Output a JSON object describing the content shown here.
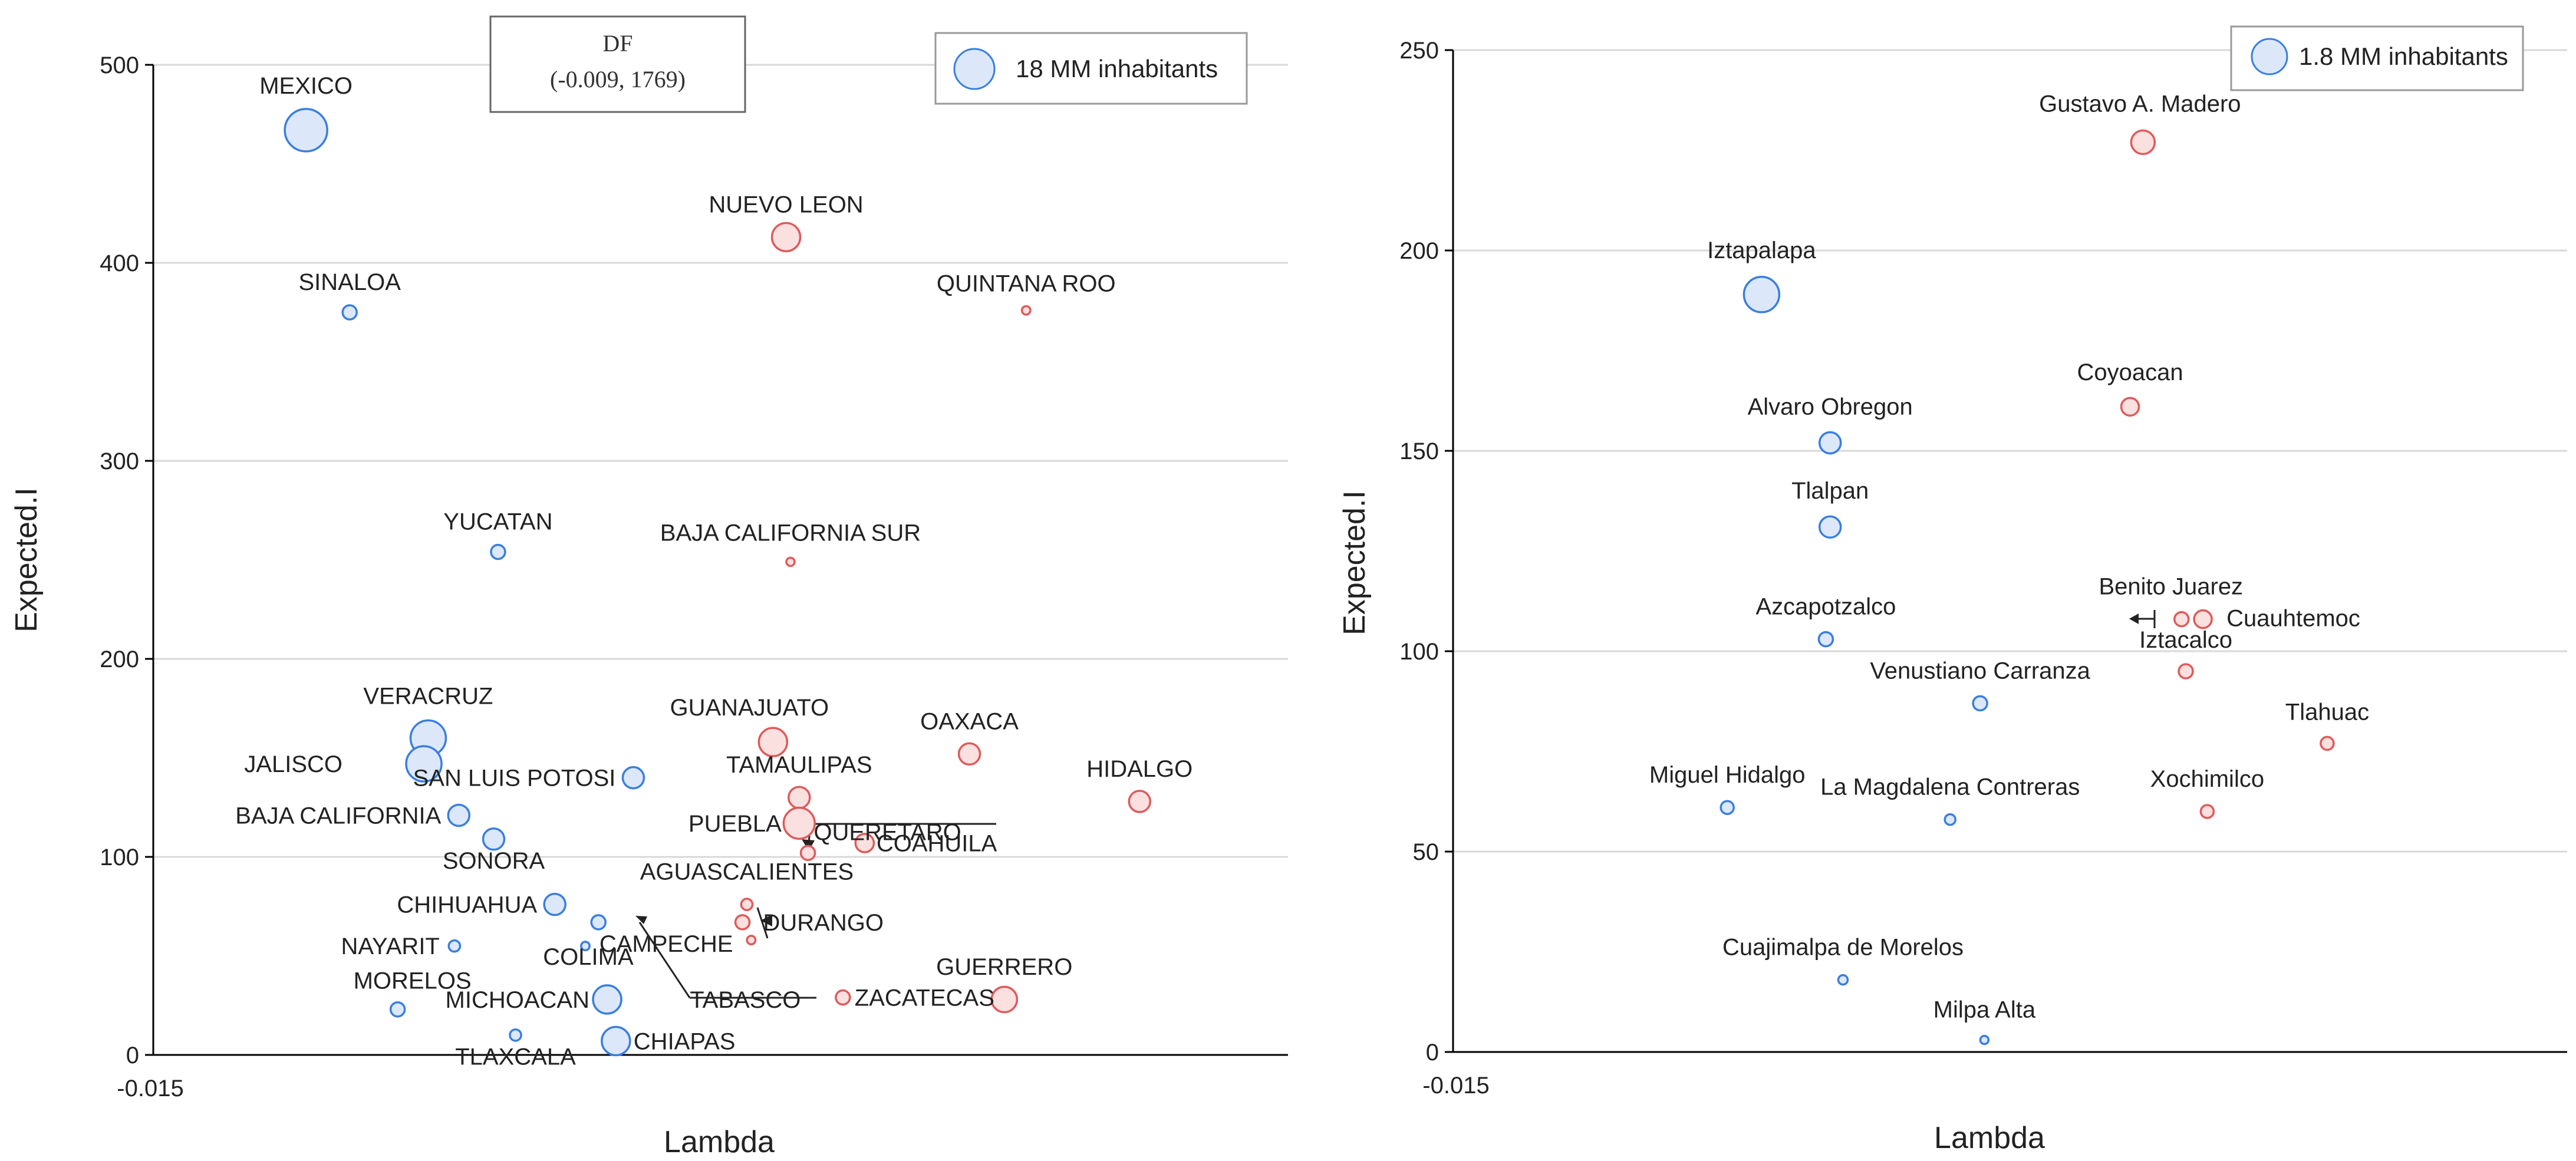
{
  "colors": {
    "blue_stroke": "#3a7ee0",
    "blue_fill": "#dce8fa",
    "red_stroke": "#e05a5a",
    "red_fill": "#fbe0e0",
    "grid": "#d8d8d8",
    "axis": "#000000"
  },
  "chart_data": [
    {
      "type": "scatter",
      "name": "states",
      "xlabel": "Lambda",
      "ylabel": "Expected.I",
      "x_tick_label": "-0.015",
      "xlim": [
        -0.015,
        0.011
      ],
      "ylim": [
        0,
        500
      ],
      "y_ticks": [
        0,
        100,
        200,
        300,
        400,
        500
      ],
      "grid": true,
      "legend": {
        "label": "18 MM inhabitants",
        "placement": "top-right"
      },
      "annotation": {
        "title": "DF",
        "value": "(-0.009, 1769)"
      },
      "points": [
        {
          "label": "MEXICO",
          "x": -0.0115,
          "y": 467,
          "size": 3,
          "group": "blue"
        },
        {
          "label": "SINALOA",
          "x": -0.0105,
          "y": 375,
          "size": 1,
          "group": "blue"
        },
        {
          "label": "YUCATAN",
          "x": -0.0071,
          "y": 254,
          "size": 1,
          "group": "blue"
        },
        {
          "label": "NUEVO LEON",
          "x": -0.0005,
          "y": 413,
          "size": 2,
          "group": "red"
        },
        {
          "label": "QUINTANA ROO",
          "x": 0.005,
          "y": 376,
          "size": 0.6,
          "group": "red"
        },
        {
          "label": "BAJA CALIFORNIA SUR",
          "x": -0.0004,
          "y": 249,
          "size": 0.4,
          "group": "red"
        },
        {
          "label": "VERACRUZ",
          "x": -0.0087,
          "y": 160,
          "size": 2.5,
          "group": "blue"
        },
        {
          "label": "JALISCO",
          "x": -0.0088,
          "y": 147,
          "size": 2.5,
          "group": "blue"
        },
        {
          "label": "BAJA CALIFORNIA",
          "x": -0.008,
          "y": 121,
          "size": 1.5,
          "group": "blue"
        },
        {
          "label": "SONORA",
          "x": -0.0072,
          "y": 109,
          "size": 1.5,
          "group": "blue"
        },
        {
          "label": "SAN LUIS POTOSI",
          "x": -0.004,
          "y": 140,
          "size": 1.5,
          "group": "blue"
        },
        {
          "label": "CHIHUAHUA",
          "x": -0.0058,
          "y": 76,
          "size": 1.5,
          "group": "blue"
        },
        {
          "label": "NAYARIT",
          "x": -0.0081,
          "y": 55,
          "size": 0.8,
          "group": "blue"
        },
        {
          "label": "MORELOS",
          "x": -0.0094,
          "y": 23,
          "size": 1,
          "group": "blue"
        },
        {
          "label": "TLAXCALA",
          "x": -0.0067,
          "y": 10,
          "size": 0.8,
          "group": "blue"
        },
        {
          "label": "MICHOACAN",
          "x": -0.0046,
          "y": 28,
          "size": 2,
          "group": "blue"
        },
        {
          "label": "CHIAPAS",
          "x": -0.0044,
          "y": 7,
          "size": 2,
          "group": "blue"
        },
        {
          "label": "COLIMA",
          "x": -0.0051,
          "y": 55,
          "size": 0.6,
          "group": "blue"
        },
        {
          "label": "CAMPECHE",
          "x": -0.0048,
          "y": 67,
          "size": 1,
          "group": "blue"
        },
        {
          "label": "GUANAJUATO",
          "x": -0.0008,
          "y": 158,
          "size": 2,
          "group": "red"
        },
        {
          "label": "TAMAULIPAS",
          "x": -0.0002,
          "y": 130,
          "size": 1.5,
          "group": "red"
        },
        {
          "label": "PUEBLA",
          "x": -0.0002,
          "y": 117,
          "size": 2.2,
          "group": "red"
        },
        {
          "label": "QUERETARO",
          "x": 0.0,
          "y": 102,
          "size": 1,
          "group": "red"
        },
        {
          "label": "COAHUILA",
          "x": 0.0013,
          "y": 107,
          "size": 1.3,
          "group": "red"
        },
        {
          "label": "AGUASCALIENTES",
          "x": -0.0014,
          "y": 76,
          "size": 0.8,
          "group": "red"
        },
        {
          "label": "DURANGO",
          "x": -0.0015,
          "y": 67,
          "size": 1,
          "group": "red"
        },
        {
          "label": "TABASCO",
          "x": -0.0013,
          "y": 58,
          "size": 0.6,
          "group": "red"
        },
        {
          "label": "OAXACA",
          "x": 0.0037,
          "y": 152,
          "size": 1.5,
          "group": "red"
        },
        {
          "label": "HIDALGO",
          "x": 0.0076,
          "y": 128,
          "size": 1.5,
          "group": "red"
        },
        {
          "label": "ZACATECAS",
          "x": 0.0008,
          "y": 29,
          "size": 1,
          "group": "red"
        },
        {
          "label": "GUERRERO",
          "x": 0.0045,
          "y": 28,
          "size": 1.8,
          "group": "red"
        }
      ]
    },
    {
      "type": "scatter",
      "name": "df_boroughs",
      "xlabel": "Lambda",
      "ylabel": "Expected.I",
      "x_tick_label": "-0.015",
      "xlim": [
        -0.015,
        0.011
      ],
      "ylim": [
        0,
        250
      ],
      "y_ticks": [
        0,
        50,
        100,
        150,
        200,
        250
      ],
      "grid": true,
      "legend": {
        "label": "1.8 MM inhabitants",
        "placement": "top-right"
      },
      "points": [
        {
          "label": "Gustavo A. Madero",
          "x": 0.0011,
          "y": 227,
          "size": 2,
          "group": "red"
        },
        {
          "label": "Iztapalapa",
          "x": -0.0078,
          "y": 189,
          "size": 3,
          "group": "blue"
        },
        {
          "label": "Coyoacan",
          "x": 0.0008,
          "y": 161,
          "size": 1.5,
          "group": "red"
        },
        {
          "label": "Alvaro Obregon",
          "x": -0.0062,
          "y": 152,
          "size": 1.8,
          "group": "blue"
        },
        {
          "label": "Tlalpan",
          "x": -0.0062,
          "y": 131,
          "size": 1.8,
          "group": "blue"
        },
        {
          "label": "Azcapotzalco",
          "x": -0.0063,
          "y": 103,
          "size": 1.2,
          "group": "blue"
        },
        {
          "label": "Benito Juarez",
          "x": 0.002,
          "y": 108,
          "size": 1.2,
          "group": "red"
        },
        {
          "label": "Cuauhtemoc",
          "x": 0.0025,
          "y": 108,
          "size": 1.5,
          "group": "red"
        },
        {
          "label": "Iztacalco",
          "x": 0.0021,
          "y": 95,
          "size": 1.2,
          "group": "red"
        },
        {
          "label": "Venustiano Carranza",
          "x": -0.0027,
          "y": 87,
          "size": 1.2,
          "group": "blue"
        },
        {
          "label": "Tlahuac",
          "x": 0.0054,
          "y": 77,
          "size": 1.1,
          "group": "red"
        },
        {
          "label": "Miguel Hidalgo",
          "x": -0.0086,
          "y": 61,
          "size": 1.1,
          "group": "blue"
        },
        {
          "label": "La Magdalena Contreras",
          "x": -0.0034,
          "y": 58,
          "size": 0.9,
          "group": "blue"
        },
        {
          "label": "Xochimilco",
          "x": 0.0026,
          "y": 60,
          "size": 1.1,
          "group": "red"
        },
        {
          "label": "Cuajimalpa de Morelos",
          "x": -0.0059,
          "y": 18,
          "size": 0.8,
          "group": "blue"
        },
        {
          "label": "Milpa Alta",
          "x": -0.0026,
          "y": 3,
          "size": 0.6,
          "group": "blue"
        }
      ]
    }
  ]
}
